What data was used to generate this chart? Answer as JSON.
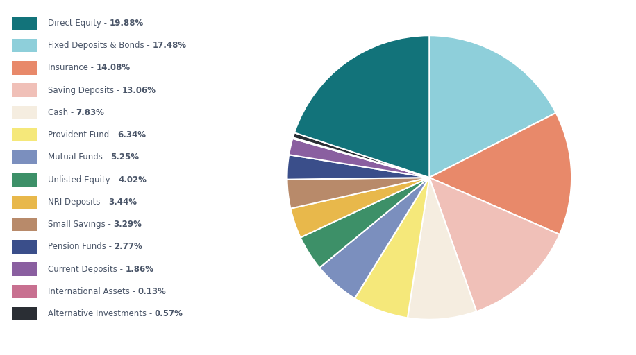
{
  "labels": [
    "Direct Equity",
    "Fixed Deposits & Bonds",
    "Insurance",
    "Saving Deposits",
    "Cash",
    "Provident Fund",
    "Mutual Funds",
    "Unlisted Equity",
    "NRI Deposits",
    "Small Savings",
    "Pension Funds",
    "Current Deposits",
    "International Assets",
    "Alternative Investments"
  ],
  "values": [
    19.88,
    17.48,
    14.08,
    13.06,
    7.83,
    6.34,
    5.25,
    4.02,
    3.44,
    3.29,
    2.77,
    1.86,
    0.13,
    0.57
  ],
  "colors": [
    "#12737a",
    "#8ecfda",
    "#e8896a",
    "#f0c0b8",
    "#f5ede0",
    "#f5e87a",
    "#7b8fbe",
    "#3d9068",
    "#e8b84b",
    "#b88a6a",
    "#3a4e8a",
    "#8a5fa0",
    "#c87090",
    "#2a2e34"
  ],
  "legend_plain": [
    "Direct Equity - ",
    "Fixed Deposits & Bonds - ",
    "Insurance - ",
    "Saving Deposits - ",
    "Cash - ",
    "Provident Fund - ",
    "Mutual Funds - ",
    "Unlisted Equity - ",
    "NRI Deposits - ",
    "Small Savings - ",
    "Pension Funds - ",
    "Current Deposits - ",
    "International Assets - ",
    "Alternative Investments - "
  ],
  "legend_bold": [
    "19.88%",
    "17.48%",
    "14.08%",
    "13.06%",
    "7.83%",
    "6.34%",
    "5.25%",
    "4.02%",
    "3.44%",
    "3.29%",
    "2.77%",
    "1.86%",
    "0.13%",
    "0.57%"
  ],
  "background_color": "#ffffff",
  "text_color": "#4a5568",
  "startangle": 90,
  "pie_order": [
    1,
    2,
    3,
    4,
    5,
    6,
    7,
    8,
    9,
    10,
    11,
    12,
    13,
    0
  ]
}
